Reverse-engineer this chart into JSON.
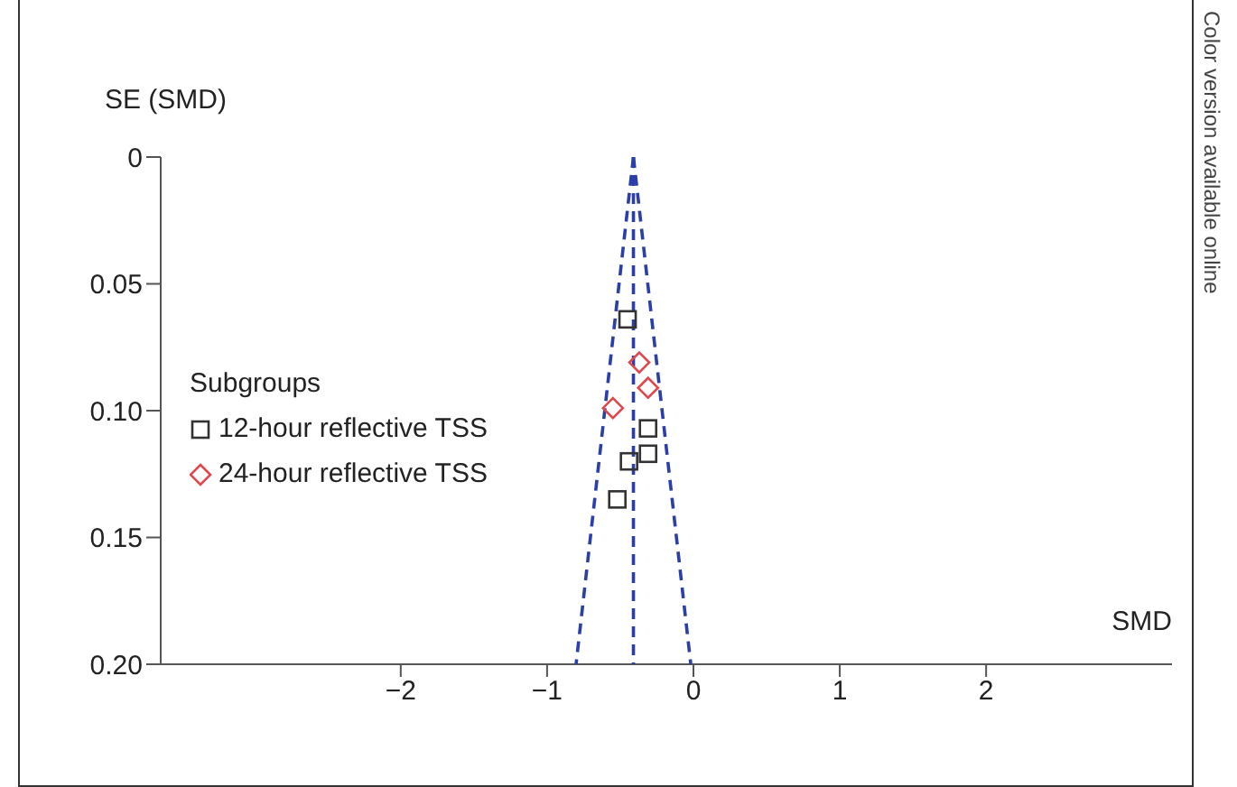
{
  "chart_data": {
    "type": "scatter",
    "xlabel": "SMD",
    "ylabel": "SE (SMD)",
    "legend_title": "Subgroups",
    "legend": "left",
    "grid": false,
    "xlim": [
      -3.64,
      3.27
    ],
    "xticks": [
      {
        "value": -2,
        "label": "−2"
      },
      {
        "value": -1,
        "label": "−1"
      },
      0,
      1,
      2
    ],
    "ylim": [
      0.2,
      0
    ],
    "yticks": [
      0,
      0.05,
      {
        "value": 0.1,
        "label": "0.10"
      },
      0.15,
      {
        "value": 0.2,
        "label": "0.20"
      }
    ],
    "series": [
      {
        "name": "12-hour reflective TSS",
        "marker": "square",
        "color": "#333333",
        "x": [
          -0.45,
          -0.31,
          -0.31,
          -0.44,
          -0.52
        ],
        "values": [
          0.064,
          0.107,
          0.117,
          0.12,
          0.135
        ]
      },
      {
        "name": "24-hour reflective TSS",
        "marker": "diamond",
        "color": "#e0474c",
        "x": [
          -0.37,
          -0.31,
          -0.55
        ],
        "values": [
          0.081,
          0.091,
          0.099
        ]
      },
      {
        "type": "line",
        "line_style": "dashed",
        "marker": "none",
        "color": "#2b3fa8",
        "x": [
          -0.41,
          -0.802
        ],
        "values": [
          0,
          0.2
        ]
      },
      {
        "type": "line",
        "line_style": "dashed",
        "marker": "none",
        "color": "#2b3fa8",
        "x": [
          -0.41,
          -0.41
        ],
        "values": [
          0,
          0.2
        ]
      },
      {
        "type": "line",
        "line_style": "dashed",
        "marker": "none",
        "color": "#2b3fa8",
        "x": [
          -0.41,
          -0.018
        ],
        "values": [
          0,
          0.2
        ]
      }
    ],
    "annotations": [
      "Color version available online"
    ]
  }
}
